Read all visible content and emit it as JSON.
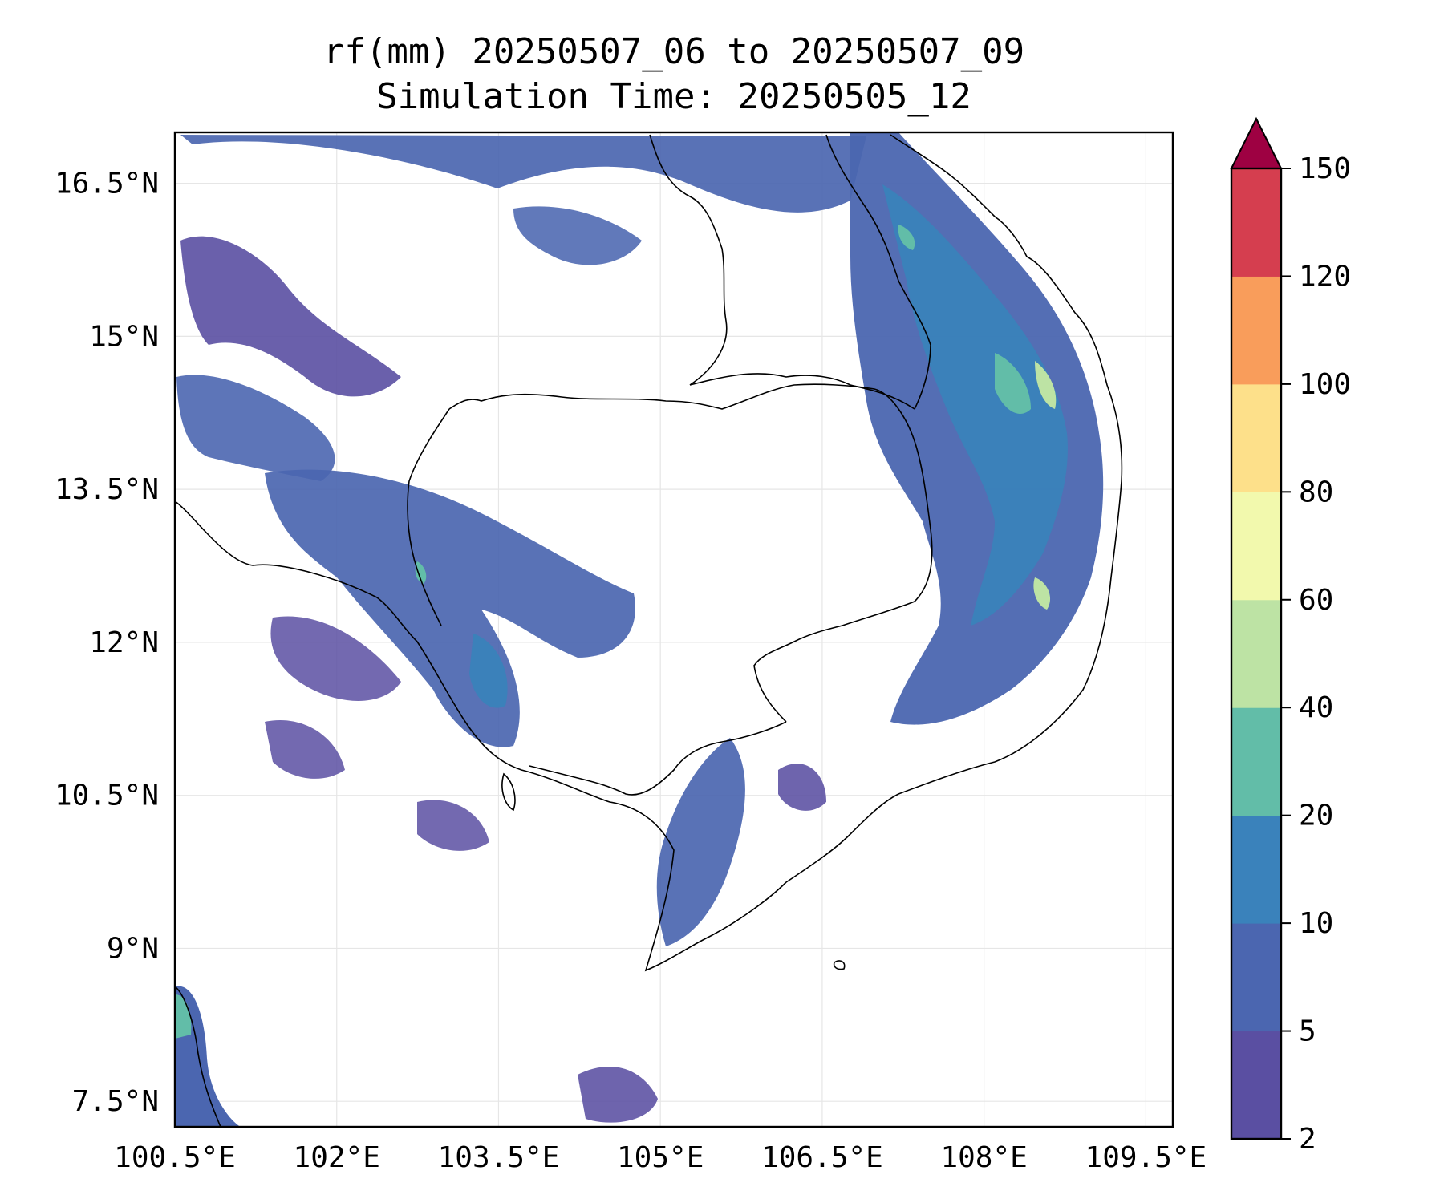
{
  "title": {
    "line1": "rf(mm) 20250507_06 to 20250507_09",
    "line2": "Simulation Time: 20250505_12"
  },
  "map": {
    "lon_range": [
      100.5,
      109.75
    ],
    "lat_range": [
      7.25,
      17.0
    ],
    "x_ticks": [
      {
        "value": 100.5,
        "label": "100.5°E"
      },
      {
        "value": 102.0,
        "label": "102°E"
      },
      {
        "value": 103.5,
        "label": "103.5°E"
      },
      {
        "value": 105.0,
        "label": "105°E"
      },
      {
        "value": 106.5,
        "label": "106.5°E"
      },
      {
        "value": 108.0,
        "label": "108°E"
      },
      {
        "value": 109.5,
        "label": "109.5°E"
      }
    ],
    "y_ticks": [
      {
        "value": 16.5,
        "label": "16.5°N"
      },
      {
        "value": 15.0,
        "label": "15°N"
      },
      {
        "value": 13.5,
        "label": "13.5°N"
      },
      {
        "value": 12.0,
        "label": "12°N"
      },
      {
        "value": 10.5,
        "label": "10.5°N"
      },
      {
        "value": 9.0,
        "label": "9°N"
      },
      {
        "value": 7.5,
        "label": "7.5°N"
      }
    ],
    "grid": true,
    "colors": {
      "land_background": "#ffffff",
      "coastline": "#000000",
      "gridline": "#e6e6e6"
    }
  },
  "colorbar": {
    "orientation": "vertical",
    "levels": [
      2,
      5,
      10,
      20,
      40,
      60,
      80,
      100,
      120,
      150
    ],
    "labels": [
      "2",
      "5",
      "10",
      "20",
      "40",
      "60",
      "80",
      "100",
      "120",
      "150"
    ],
    "colors": [
      "#5a4fa2",
      "#4b66b0",
      "#3a82bb",
      "#62bda8",
      "#bde3a4",
      "#f2f9ad",
      "#fde08a",
      "#f99d5b",
      "#d53e4f"
    ],
    "extend_color": "#9e0142",
    "extend": "max"
  }
}
